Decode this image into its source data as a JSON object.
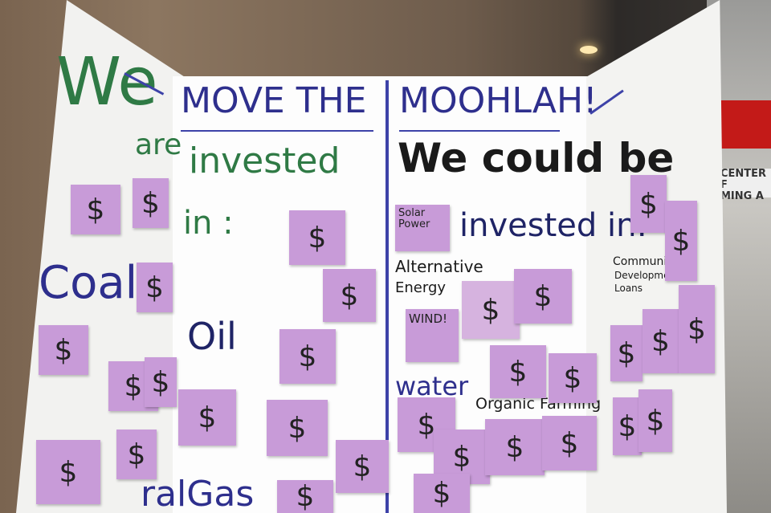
{
  "board": {
    "header_left": "We",
    "arrow_left": "→",
    "title_part1": "MOVE THE",
    "title_part2": "MOOHLAH!",
    "arrow_right": "→",
    "are": "are",
    "invested": "invested",
    "in_colon": "in :",
    "we_could_be": "We could be",
    "invested_in": "invested in:",
    "coal": "Coal",
    "oil": "Oil",
    "natural_gas": "ralGas",
    "alternative_energy": [
      "Alternative",
      "Energy"
    ],
    "water": "water",
    "organic_farming": "Organic Farming",
    "community_development": [
      "Community",
      "Development",
      "Loans"
    ]
  },
  "stickies": {
    "dollar": "$",
    "solar_power": [
      "Solar",
      "Power"
    ],
    "wind": "WIND!"
  },
  "background_sign": {
    "text": [
      "CENTER F",
      "MING A"
    ]
  },
  "colors": {
    "sticky": "#c89bd8",
    "marker_blue": "#2e2f8d",
    "marker_green": "#2f7a45"
  }
}
